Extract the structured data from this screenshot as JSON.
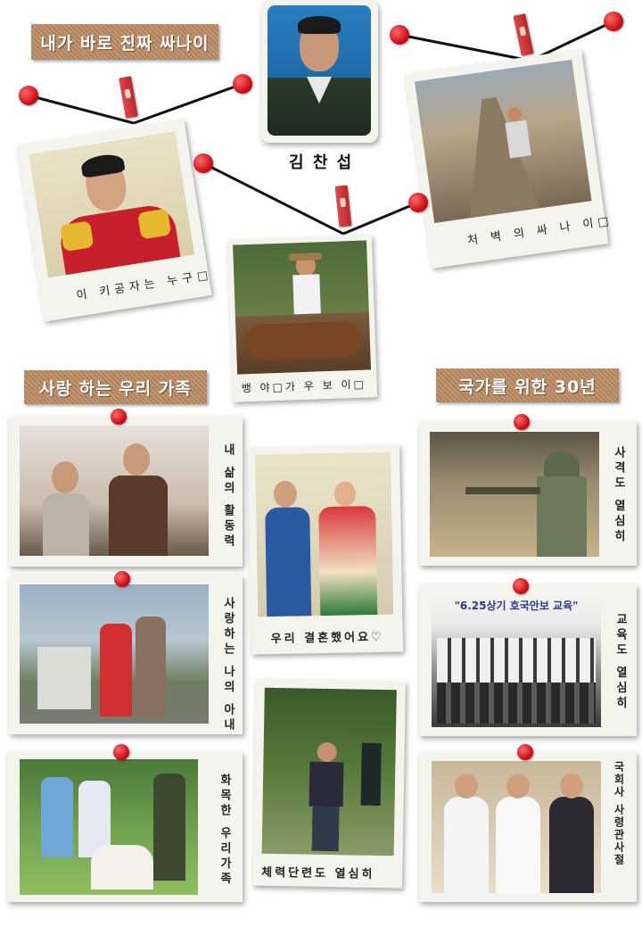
{
  "header": {
    "title_badge": "내가 바로 진짜 싸나이",
    "person_name": "김 찬 섭"
  },
  "top_photos": {
    "cadet_caption": "이 키공자는 누구□",
    "cowboy_caption": "뱅 야□가 우 보 이□",
    "cliff_caption": "처 벽 의 싸 나 이□"
  },
  "sections": {
    "family_title": "사랑 하는 우리 가족",
    "career_title": "국가를 위한 30년"
  },
  "family_photos": [
    {
      "caption": "내 삶의 활동력"
    },
    {
      "caption": "사랑하는 나의 아내"
    },
    {
      "caption": "화목한 우리가족"
    }
  ],
  "center_photos": [
    {
      "caption": "우리 결혼했어요♡"
    },
    {
      "caption": "체력단련도 열심히"
    }
  ],
  "career_photos": [
    {
      "caption": "사격도 열심히",
      "banner": ""
    },
    {
      "caption": "교육도 열심히",
      "banner": "\"6.25상기 호국안보 교육\""
    },
    {
      "caption": "국회사 사령관사절"
    }
  ],
  "colors": {
    "label_bg": "#b98962",
    "pin_red": "#d0101a",
    "polaroid": "#f4f4ef"
  }
}
